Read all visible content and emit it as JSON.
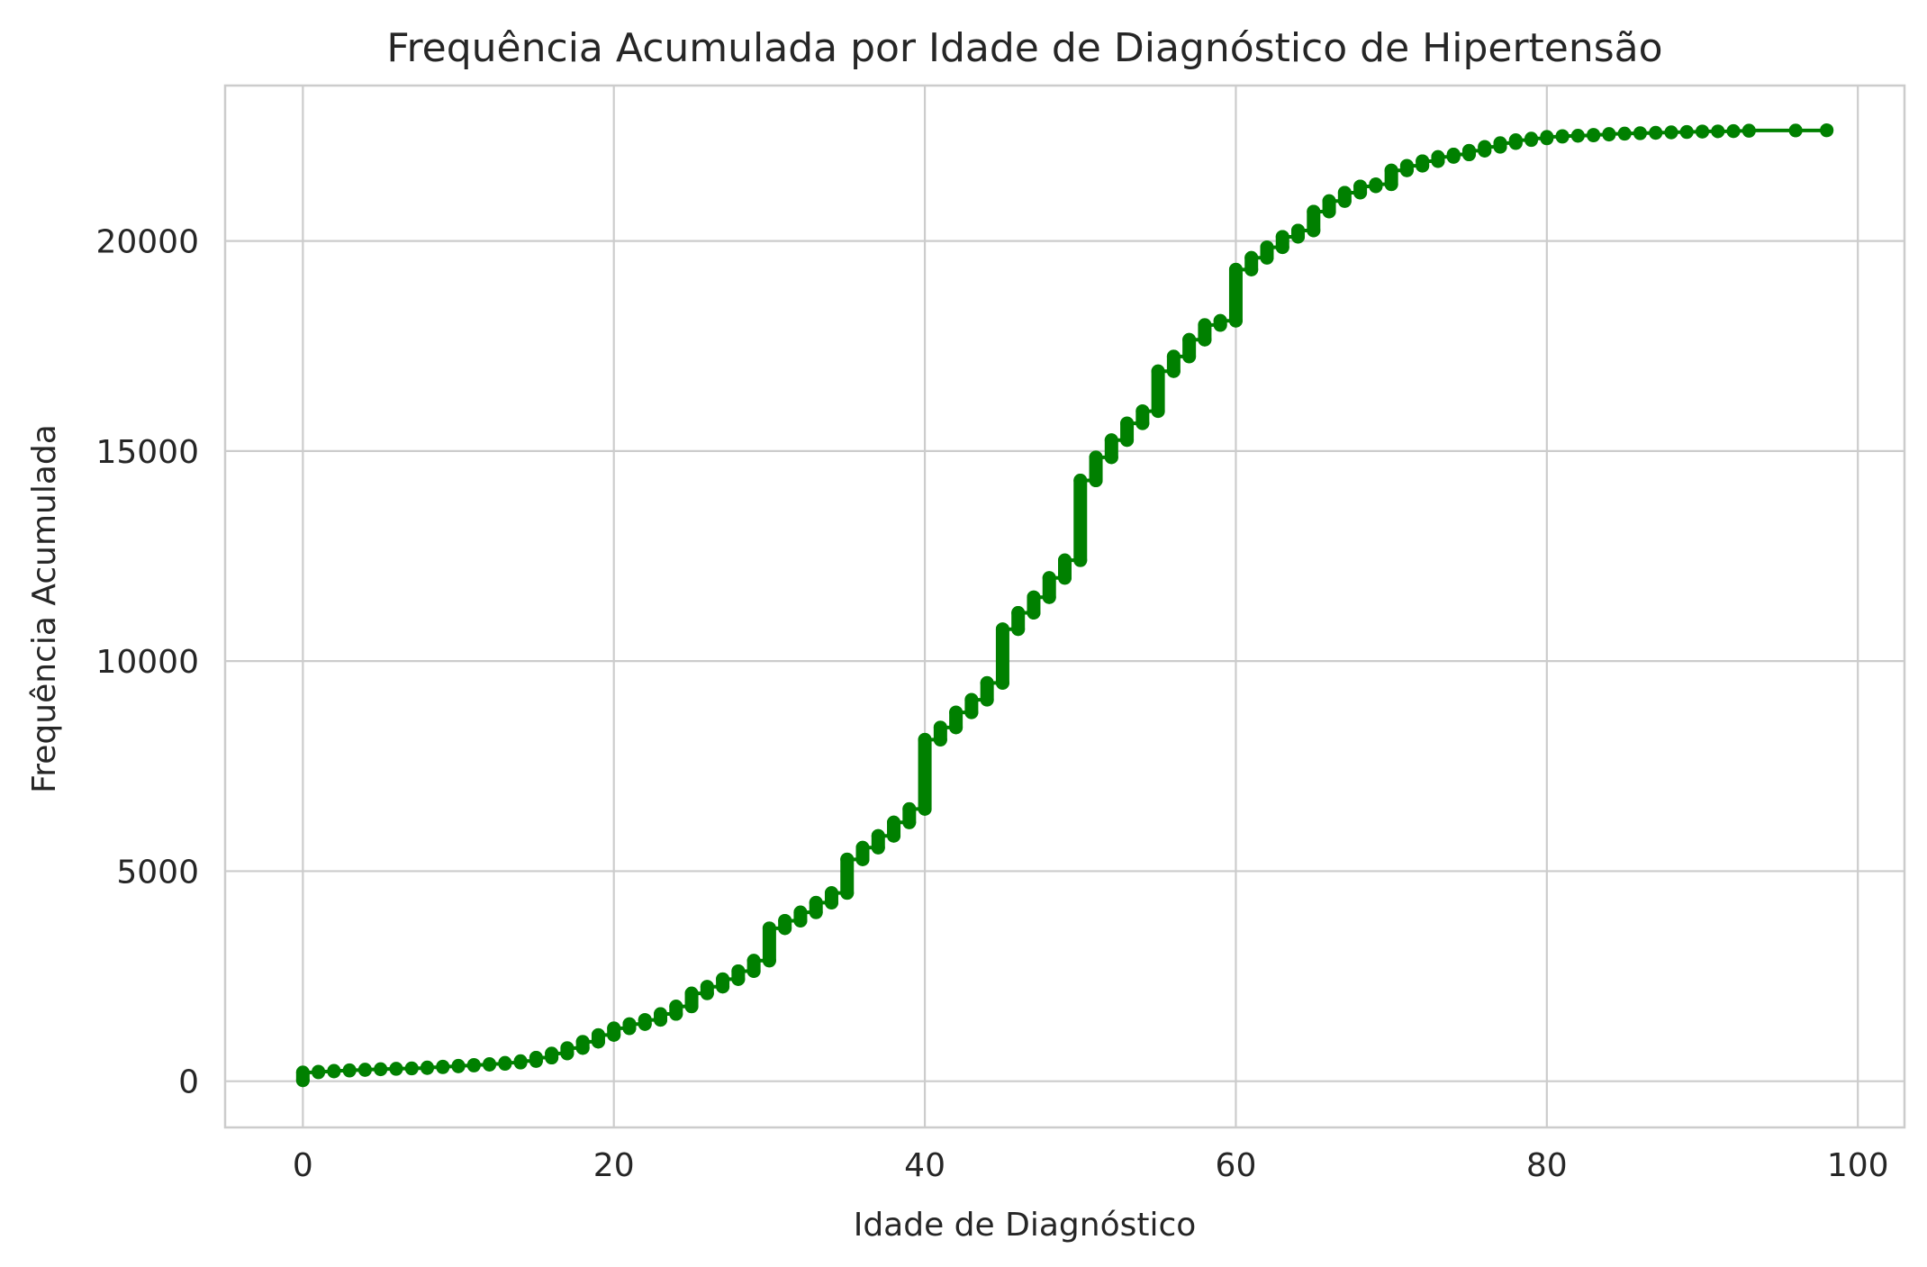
{
  "chart_data": {
    "type": "line",
    "title": "Frequência Acumulada por Idade de Diagnóstico de Hipertensão",
    "xlabel": "Idade de Diagnóstico",
    "ylabel": "Frequência Acumulada",
    "xlim": [
      -5,
      103
    ],
    "ylim": [
      -1100,
      23700
    ],
    "xticks": [
      0,
      20,
      40,
      60,
      80,
      100
    ],
    "yticks": [
      0,
      5000,
      10000,
      15000,
      20000
    ],
    "grid": true,
    "color": "#008000",
    "marker": "circle",
    "series": [
      {
        "x": [
          0,
          1,
          2,
          3,
          4,
          5,
          6,
          7,
          8,
          9,
          10,
          11,
          12,
          13,
          14,
          15,
          16,
          17,
          18,
          19,
          20,
          21,
          22,
          23,
          24,
          25,
          26,
          27,
          28,
          29,
          30,
          31,
          32,
          33,
          34,
          35,
          36,
          37,
          38,
          39,
          40,
          41,
          42,
          43,
          44,
          45,
          46,
          47,
          48,
          49,
          50,
          51,
          52,
          53,
          54,
          55,
          56,
          57,
          58,
          59,
          60,
          61,
          62,
          63,
          64,
          65,
          66,
          67,
          68,
          69,
          70,
          71,
          72,
          73,
          74,
          75,
          76,
          77,
          78,
          79,
          80,
          81,
          82,
          83,
          84,
          85,
          86,
          87,
          88,
          89,
          90,
          91,
          92,
          93,
          96,
          98
        ],
        "start": [
          20,
          210,
          230,
          250,
          265,
          280,
          290,
          300,
          310,
          330,
          350,
          370,
          390,
          410,
          440,
          480,
          560,
          660,
          790,
          940,
          1100,
          1260,
          1360,
          1460,
          1600,
          1780,
          2090,
          2250,
          2430,
          2620,
          2870,
          3640,
          3820,
          4020,
          4250,
          4480,
          5280,
          5560,
          5840,
          6160,
          6480,
          8130,
          8420,
          8780,
          9080,
          9480,
          10760,
          11150,
          11520,
          11980,
          12400,
          14300,
          14850,
          15260,
          15660,
          15950,
          16900,
          17250,
          17650,
          18000,
          18100,
          19320,
          19600,
          19850,
          20100,
          20250,
          20700,
          20950,
          21150,
          21300,
          21350,
          21680,
          21790,
          21900,
          22000,
          22060,
          22150,
          22240,
          22330,
          22400,
          22440,
          22480,
          22500,
          22510,
          22530,
          22550,
          22560,
          22570,
          22580,
          22590,
          22600,
          22610,
          22610,
          22620,
          22630,
          22630
        ],
        "end": [
          210,
          230,
          250,
          265,
          280,
          290,
          300,
          310,
          330,
          350,
          370,
          390,
          410,
          440,
          480,
          560,
          660,
          790,
          940,
          1100,
          1260,
          1360,
          1460,
          1600,
          1780,
          2090,
          2250,
          2430,
          2620,
          2870,
          3640,
          3820,
          4020,
          4250,
          4480,
          5280,
          5560,
          5840,
          6160,
          6480,
          8130,
          8420,
          8780,
          9080,
          9480,
          10760,
          11150,
          11520,
          11980,
          12400,
          14300,
          14850,
          15260,
          15660,
          15950,
          16900,
          17250,
          17650,
          18000,
          18100,
          19320,
          19600,
          19850,
          20100,
          20250,
          20700,
          20950,
          21150,
          21300,
          21350,
          21680,
          21790,
          21900,
          22000,
          22060,
          22150,
          22240,
          22330,
          22400,
          22440,
          22480,
          22500,
          22510,
          22530,
          22550,
          22560,
          22570,
          22580,
          22590,
          22600,
          22610,
          22610,
          22620,
          22630,
          22630,
          22640
        ]
      }
    ]
  }
}
